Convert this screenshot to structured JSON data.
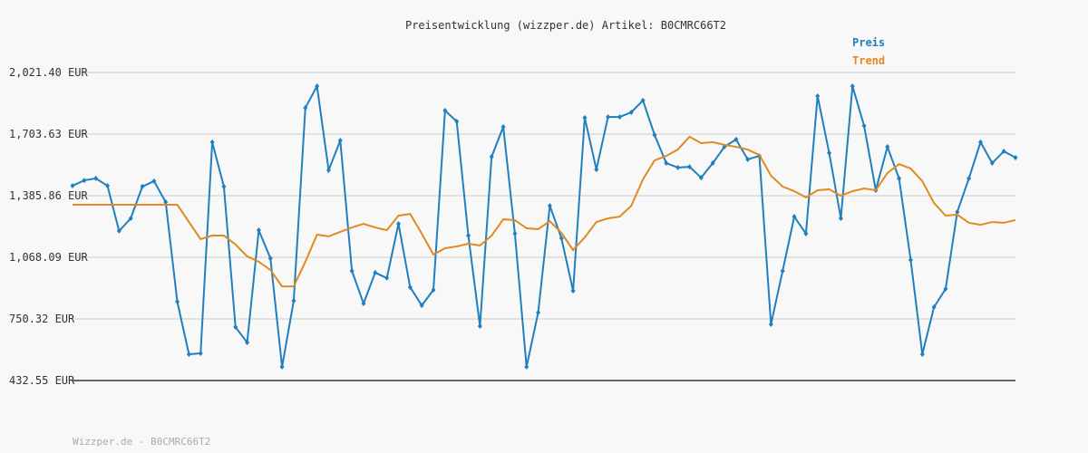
{
  "chart_data": {
    "type": "line",
    "title": "Preisentwicklung (wizzper.de) Artikel: B0CMRC66T2",
    "footer": "Wizzper.de - B0CMRC66T2",
    "ylim": [
      432.55,
      2021.4
    ],
    "yticks": [
      {
        "value": 2021.4,
        "label": "2,021.40 EUR"
      },
      {
        "value": 1703.63,
        "label": "1,703.63 EUR"
      },
      {
        "value": 1385.86,
        "label": "1,385.86 EUR"
      },
      {
        "value": 1068.09,
        "label": "1,068.09 EUR"
      },
      {
        "value": 750.32,
        "label": "750.32 EUR"
      },
      {
        "value": 432.55,
        "label": "432.55 EUR"
      }
    ],
    "grid": true,
    "legend": "top-right",
    "series": [
      {
        "name": "Preis",
        "color": "#1f7fbf",
        "markers": true,
        "values": [
          1437,
          1465,
          1475,
          1437,
          1204,
          1269,
          1433,
          1461,
          1353,
          839,
          568,
          573,
          1662,
          1433,
          708,
          629,
          1208,
          1063,
          503,
          844,
          1839,
          1951,
          1517,
          1671,
          998,
          830,
          989,
          961,
          1241,
          914,
          820,
          900,
          1825,
          1769,
          1180,
          713,
          1587,
          1741,
          1190,
          503,
          783,
          1334,
          1166,
          895,
          1788,
          1521,
          1792,
          1792,
          1816,
          1877,
          1699,
          1554,
          1531,
          1535,
          1479,
          1554,
          1638,
          1676,
          1573,
          1591,
          722,
          998,
          1278,
          1190,
          1900,
          1606,
          1269,
          1951,
          1746,
          1414,
          1638,
          1475,
          1054,
          568,
          811,
          905,
          1302,
          1475,
          1662,
          1554,
          1615,
          1582
        ]
      },
      {
        "name": "Trend",
        "color": "#e08a20",
        "markers": false,
        "values": [
          1339,
          1339,
          1339,
          1339,
          1339,
          1339,
          1339,
          1339,
          1339,
          1339,
          1250,
          1162,
          1180,
          1180,
          1134,
          1073,
          1045,
          1003,
          918,
          918,
          1045,
          1185,
          1176,
          1199,
          1222,
          1241,
          1222,
          1208,
          1283,
          1292,
          1190,
          1082,
          1115,
          1124,
          1138,
          1129,
          1180,
          1264,
          1260,
          1218,
          1213,
          1255,
          1194,
          1105,
          1171,
          1250,
          1269,
          1278,
          1334,
          1470,
          1568,
          1591,
          1624,
          1690,
          1657,
          1662,
          1648,
          1638,
          1624,
          1596,
          1489,
          1433,
          1409,
          1377,
          1414,
          1419,
          1386,
          1409,
          1423,
          1414,
          1503,
          1549,
          1526,
          1461,
          1348,
          1283,
          1288,
          1246,
          1236,
          1250,
          1246,
          1260
        ]
      }
    ]
  }
}
